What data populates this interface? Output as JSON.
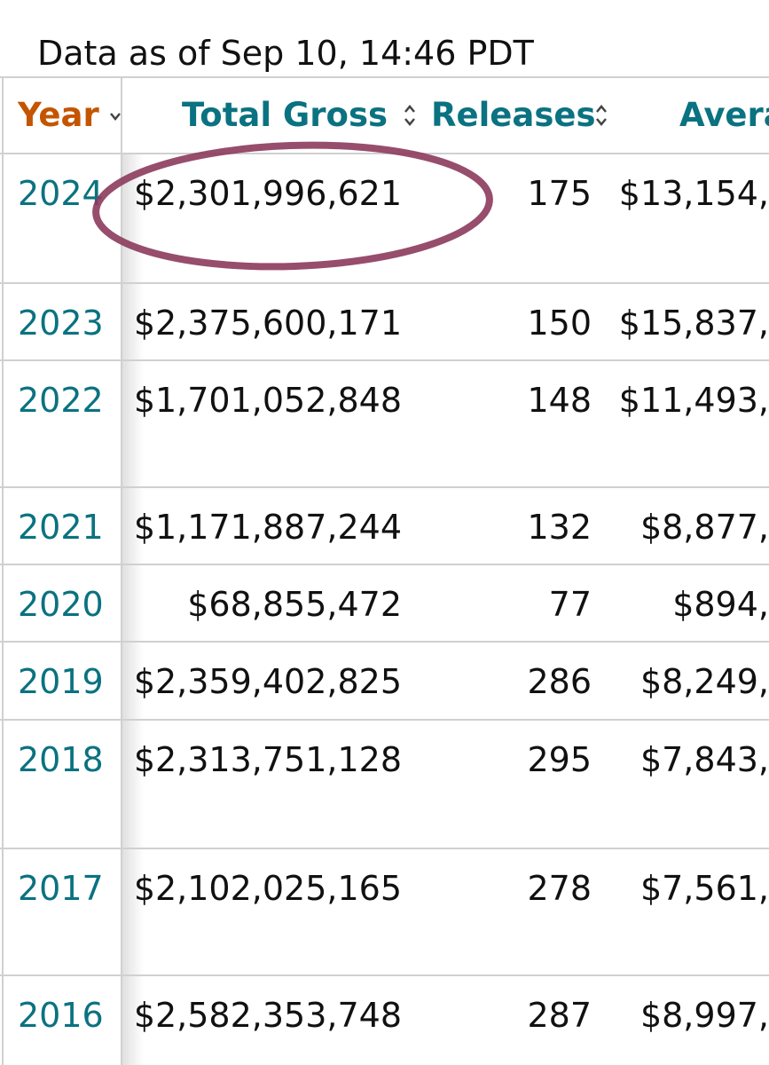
{
  "note": "Data as of Sep 10, 14:46 PDT",
  "table": {
    "headers": [
      "Year",
      "Total Gross",
      "Releases",
      "Avera"
    ],
    "rows": [
      [
        "2024",
        "$2,301,996,621",
        "175",
        "$13,154,"
      ],
      [
        "2023",
        "$2,375,600,171",
        "150",
        "$15,837,"
      ],
      [
        "2022",
        "$1,701,052,848",
        "148",
        "$11,493,"
      ],
      [
        "2021",
        "$1,171,887,244",
        "132",
        "$8,877,"
      ],
      [
        "2020",
        "$68,855,472",
        "77",
        "$894,"
      ],
      [
        "2019",
        "$2,359,402,825",
        "286",
        "$8,249,"
      ],
      [
        "2018",
        "$2,313,751,128",
        "295",
        "$7,843,"
      ],
      [
        "2017",
        "$2,102,025,165",
        "278",
        "$7,561,"
      ],
      [
        "2016",
        "$2,582,353,748",
        "287",
        "$8,997,"
      ]
    ]
  }
}
